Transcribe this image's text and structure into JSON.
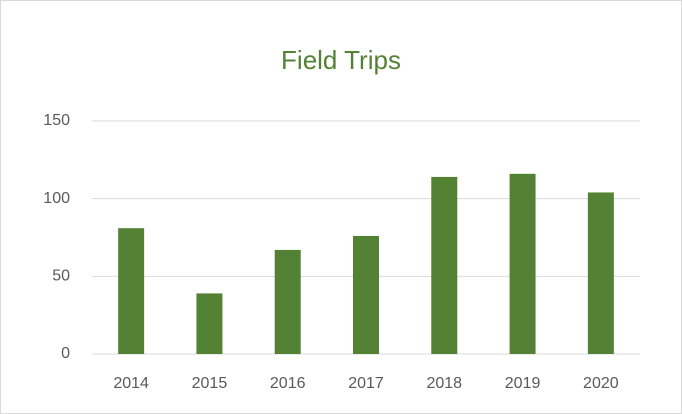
{
  "chart_data": {
    "type": "bar",
    "title": "Field Trips",
    "categories": [
      "2014",
      "2015",
      "2016",
      "2017",
      "2018",
      "2019",
      "2020"
    ],
    "values": [
      81,
      39,
      67,
      76,
      114,
      116,
      104
    ],
    "color": "#548235",
    "ylim": [
      0,
      150
    ],
    "yticks": [
      0,
      50,
      100,
      150
    ],
    "grid": true
  }
}
